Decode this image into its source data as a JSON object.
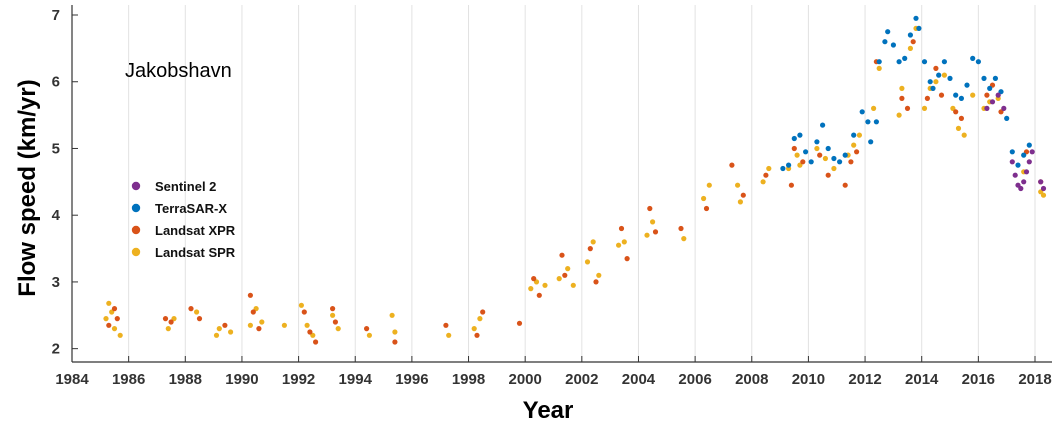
{
  "chart_data": {
    "type": "scatter",
    "title": "",
    "annotation": "Jakobshavn",
    "xlabel": "Year",
    "ylabel": "Flow speed (km/yr)",
    "xlim": [
      1984,
      2018.6
    ],
    "ylim": [
      1.8,
      7.15
    ],
    "xticks": [
      1984,
      1986,
      1988,
      1990,
      1992,
      1994,
      1996,
      1998,
      2000,
      2002,
      2004,
      2006,
      2008,
      2010,
      2012,
      2014,
      2016,
      2018
    ],
    "yticks": [
      2,
      3,
      4,
      5,
      6,
      7
    ],
    "grid": "vertical",
    "legend_position": "left",
    "legend": [
      "Sentinel 2",
      "TerraSAR-X",
      "Landsat XPR",
      "Landsat SPR"
    ],
    "series": [
      {
        "name": "Landsat SPR",
        "color": "#EDB120",
        "points": [
          [
            1985.2,
            2.45
          ],
          [
            1985.3,
            2.68
          ],
          [
            1985.4,
            2.55
          ],
          [
            1985.5,
            2.3
          ],
          [
            1985.7,
            2.2
          ],
          [
            1987.4,
            2.3
          ],
          [
            1987.6,
            2.45
          ],
          [
            1988.4,
            2.55
          ],
          [
            1989.1,
            2.2
          ],
          [
            1989.2,
            2.3
          ],
          [
            1989.6,
            2.25
          ],
          [
            1990.3,
            2.35
          ],
          [
            1990.5,
            2.6
          ],
          [
            1990.7,
            2.4
          ],
          [
            1991.5,
            2.35
          ],
          [
            1992.1,
            2.65
          ],
          [
            1992.3,
            2.35
          ],
          [
            1992.5,
            2.2
          ],
          [
            1993.2,
            2.5
          ],
          [
            1993.4,
            2.3
          ],
          [
            1994.5,
            2.2
          ],
          [
            1995.3,
            2.5
          ],
          [
            1995.4,
            2.25
          ],
          [
            1997.3,
            2.2
          ],
          [
            1998.2,
            2.3
          ],
          [
            1998.4,
            2.45
          ],
          [
            2000.2,
            2.9
          ],
          [
            2000.4,
            3.0
          ],
          [
            2000.7,
            2.95
          ],
          [
            2001.2,
            3.05
          ],
          [
            2001.5,
            3.2
          ],
          [
            2001.7,
            2.95
          ],
          [
            2002.2,
            3.3
          ],
          [
            2002.4,
            3.6
          ],
          [
            2002.6,
            3.1
          ],
          [
            2003.3,
            3.55
          ],
          [
            2003.5,
            3.6
          ],
          [
            2004.3,
            3.7
          ],
          [
            2004.5,
            3.9
          ],
          [
            2005.6,
            3.65
          ],
          [
            2006.3,
            4.25
          ],
          [
            2006.5,
            4.45
          ],
          [
            2007.5,
            4.45
          ],
          [
            2007.6,
            4.2
          ],
          [
            2008.4,
            4.5
          ],
          [
            2008.6,
            4.7
          ],
          [
            2009.3,
            4.7
          ],
          [
            2009.6,
            4.9
          ],
          [
            2009.7,
            4.75
          ],
          [
            2010.3,
            5.0
          ],
          [
            2010.6,
            4.85
          ],
          [
            2010.9,
            4.7
          ],
          [
            2011.4,
            4.9
          ],
          [
            2011.6,
            5.05
          ],
          [
            2011.8,
            5.2
          ],
          [
            2012.3,
            5.6
          ],
          [
            2012.5,
            6.2
          ],
          [
            2013.2,
            5.5
          ],
          [
            2013.3,
            5.9
          ],
          [
            2013.6,
            6.5
          ],
          [
            2013.8,
            6.8
          ],
          [
            2014.1,
            5.6
          ],
          [
            2014.3,
            5.9
          ],
          [
            2014.5,
            6.0
          ],
          [
            2014.8,
            6.1
          ],
          [
            2015.1,
            5.6
          ],
          [
            2015.3,
            5.3
          ],
          [
            2015.5,
            5.2
          ],
          [
            2015.8,
            5.8
          ],
          [
            2016.2,
            5.6
          ],
          [
            2016.4,
            5.7
          ],
          [
            2016.7,
            5.75
          ],
          [
            2017.6,
            4.65
          ],
          [
            2018.2,
            4.35
          ],
          [
            2018.3,
            4.3
          ]
        ]
      },
      {
        "name": "Landsat XPR",
        "color": "#D95319",
        "points": [
          [
            1985.3,
            2.35
          ],
          [
            1985.5,
            2.6
          ],
          [
            1985.6,
            2.45
          ],
          [
            1987.3,
            2.45
          ],
          [
            1987.5,
            2.4
          ],
          [
            1988.2,
            2.6
          ],
          [
            1988.5,
            2.45
          ],
          [
            1989.4,
            2.35
          ],
          [
            1990.3,
            2.8
          ],
          [
            1990.4,
            2.55
          ],
          [
            1990.6,
            2.3
          ],
          [
            1992.2,
            2.55
          ],
          [
            1992.4,
            2.25
          ],
          [
            1992.6,
            2.1
          ],
          [
            1993.2,
            2.6
          ],
          [
            1993.3,
            2.4
          ],
          [
            1994.4,
            2.3
          ],
          [
            1995.4,
            2.1
          ],
          [
            1997.2,
            2.35
          ],
          [
            1998.3,
            2.2
          ],
          [
            1998.5,
            2.55
          ],
          [
            1999.8,
            2.38
          ],
          [
            2000.3,
            3.05
          ],
          [
            2000.5,
            2.8
          ],
          [
            2001.3,
            3.4
          ],
          [
            2001.4,
            3.1
          ],
          [
            2002.3,
            3.5
          ],
          [
            2002.5,
            3.0
          ],
          [
            2003.4,
            3.8
          ],
          [
            2003.6,
            3.35
          ],
          [
            2004.4,
            4.1
          ],
          [
            2004.6,
            3.75
          ],
          [
            2005.5,
            3.8
          ],
          [
            2006.4,
            4.1
          ],
          [
            2007.3,
            4.75
          ],
          [
            2007.7,
            4.3
          ],
          [
            2008.5,
            4.6
          ],
          [
            2009.4,
            4.45
          ],
          [
            2009.5,
            5.0
          ],
          [
            2009.8,
            4.8
          ],
          [
            2010.4,
            4.9
          ],
          [
            2010.7,
            4.6
          ],
          [
            2011.3,
            4.45
          ],
          [
            2011.5,
            4.8
          ],
          [
            2011.7,
            4.95
          ],
          [
            2012.4,
            6.3
          ],
          [
            2013.3,
            5.75
          ],
          [
            2013.5,
            5.6
          ],
          [
            2013.7,
            6.6
          ],
          [
            2014.2,
            5.75
          ],
          [
            2014.5,
            6.2
          ],
          [
            2014.7,
            5.8
          ],
          [
            2015.2,
            5.55
          ],
          [
            2015.4,
            5.45
          ],
          [
            2016.3,
            5.8
          ],
          [
            2016.5,
            5.95
          ],
          [
            2016.8,
            5.55
          ],
          [
            2017.7,
            4.95
          ],
          [
            2018.2,
            4.5
          ]
        ]
      },
      {
        "name": "TerraSAR-X",
        "color": "#0072BD",
        "points": [
          [
            2009.1,
            4.7
          ],
          [
            2009.3,
            4.75
          ],
          [
            2009.5,
            5.15
          ],
          [
            2009.7,
            5.2
          ],
          [
            2009.9,
            4.95
          ],
          [
            2010.1,
            4.8
          ],
          [
            2010.3,
            5.1
          ],
          [
            2010.5,
            5.35
          ],
          [
            2010.7,
            5.0
          ],
          [
            2010.9,
            4.85
          ],
          [
            2011.1,
            4.8
          ],
          [
            2011.3,
            4.9
          ],
          [
            2011.6,
            5.2
          ],
          [
            2011.9,
            5.55
          ],
          [
            2012.1,
            5.4
          ],
          [
            2012.2,
            5.1
          ],
          [
            2012.4,
            5.4
          ],
          [
            2012.5,
            6.3
          ],
          [
            2012.7,
            6.6
          ],
          [
            2012.8,
            6.75
          ],
          [
            2013.0,
            6.55
          ],
          [
            2013.2,
            6.3
          ],
          [
            2013.4,
            6.35
          ],
          [
            2013.6,
            6.7
          ],
          [
            2013.8,
            6.95
          ],
          [
            2013.9,
            6.8
          ],
          [
            2014.1,
            6.3
          ],
          [
            2014.3,
            6.0
          ],
          [
            2014.4,
            5.9
          ],
          [
            2014.6,
            6.1
          ],
          [
            2014.8,
            6.3
          ],
          [
            2015.0,
            6.05
          ],
          [
            2015.2,
            5.8
          ],
          [
            2015.4,
            5.75
          ],
          [
            2015.6,
            5.95
          ],
          [
            2015.8,
            6.35
          ],
          [
            2016.0,
            6.3
          ],
          [
            2016.2,
            6.05
          ],
          [
            2016.4,
            5.9
          ],
          [
            2016.6,
            6.05
          ],
          [
            2016.8,
            5.85
          ],
          [
            2017.0,
            5.45
          ],
          [
            2017.2,
            4.95
          ],
          [
            2017.4,
            4.75
          ],
          [
            2017.6,
            4.9
          ],
          [
            2017.8,
            5.05
          ]
        ]
      },
      {
        "name": "Sentinel 2",
        "color": "#7E2F8E",
        "points": [
          [
            2016.3,
            5.6
          ],
          [
            2016.5,
            5.7
          ],
          [
            2016.7,
            5.8
          ],
          [
            2016.9,
            5.6
          ],
          [
            2017.2,
            4.8
          ],
          [
            2017.3,
            4.6
          ],
          [
            2017.4,
            4.45
          ],
          [
            2017.5,
            4.4
          ],
          [
            2017.6,
            4.5
          ],
          [
            2017.7,
            4.65
          ],
          [
            2017.8,
            4.8
          ],
          [
            2017.9,
            4.95
          ],
          [
            2018.2,
            4.5
          ],
          [
            2018.3,
            4.4
          ]
        ]
      }
    ]
  }
}
